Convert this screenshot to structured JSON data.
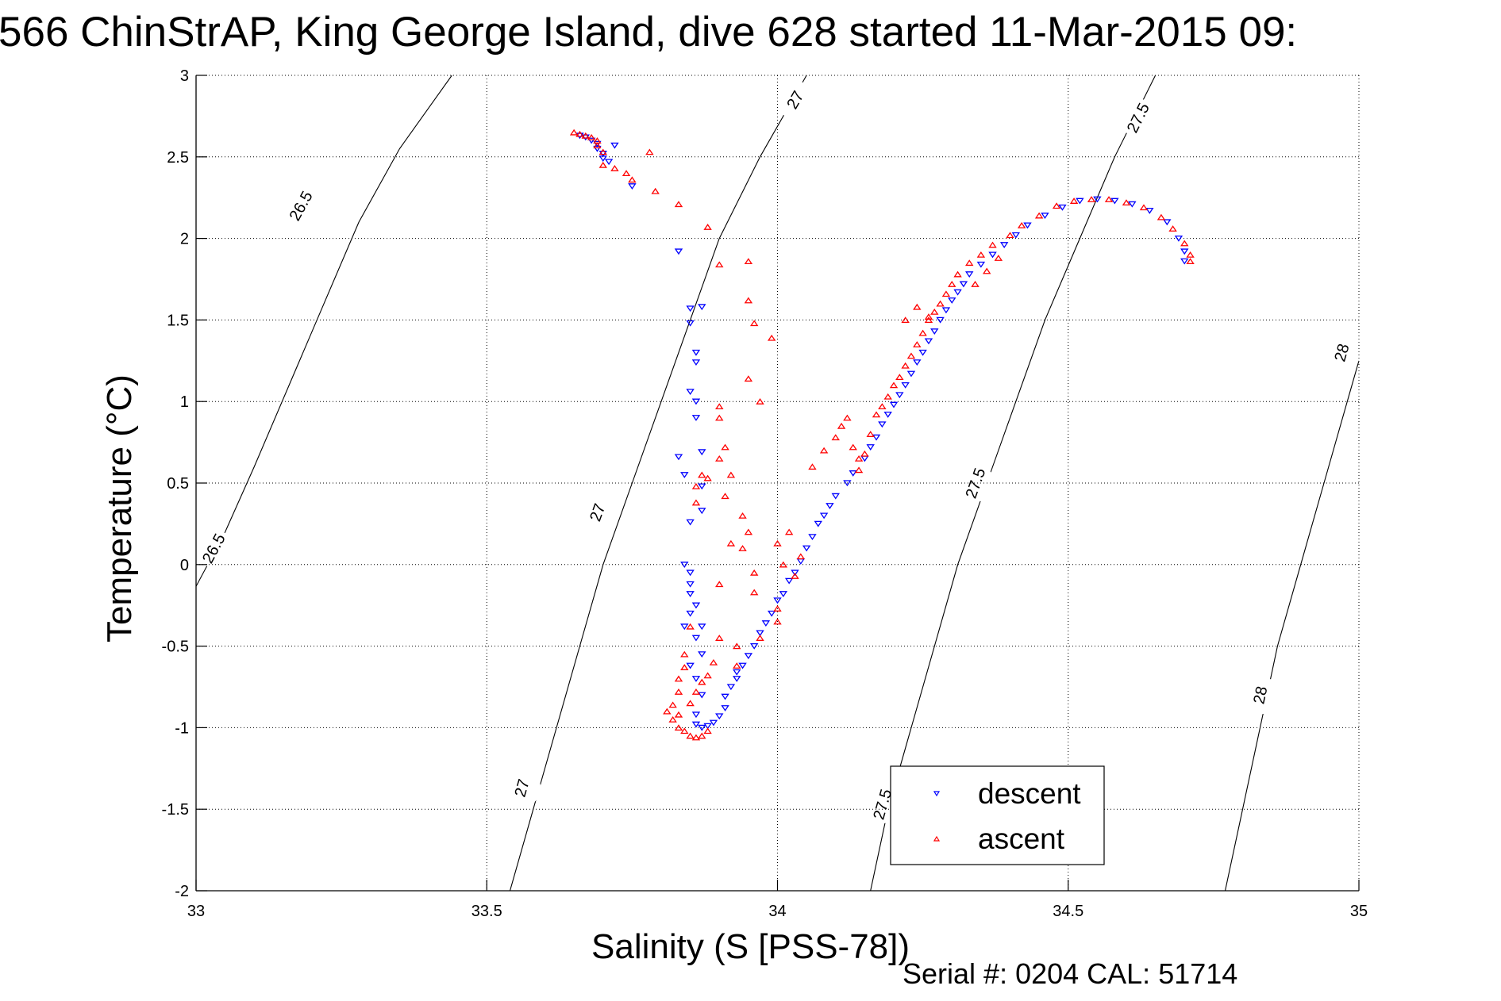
{
  "chart_data": {
    "type": "scatter",
    "title": "566 ChinStrAP, King George Island, dive 628 started 11-Mar-2015 09:",
    "xlabel": "Salinity (S [PSS-78])",
    "ylabel": "Temperature (°C)",
    "xlim": [
      33,
      35
    ],
    "ylim": [
      -2,
      3
    ],
    "xticks": [
      33,
      33.5,
      34,
      34.5,
      35
    ],
    "xtick_labels": [
      "33",
      "33.5",
      "34",
      "34.5",
      "35"
    ],
    "yticks": [
      -2,
      -1.5,
      -1,
      -0.5,
      0,
      0.5,
      1,
      1.5,
      2,
      2.5,
      3
    ],
    "ytick_labels": [
      "-2",
      "-1.5",
      "-1",
      "-0.5",
      "0",
      "0.5",
      "1",
      "1.5",
      "2",
      "2.5",
      "3"
    ],
    "grid": true,
    "legend_position": "bottom-right",
    "footer": "Serial #: 0204  CAL: 51714",
    "isopycnals": [
      {
        "sigma": 26.5,
        "label": "26.5",
        "points": [
          [
            32.99,
            -0.2
          ],
          [
            33.05,
            0.2
          ],
          [
            33.1,
            0.6
          ],
          [
            33.16,
            1.1
          ],
          [
            33.22,
            1.6
          ],
          [
            33.28,
            2.1
          ],
          [
            33.35,
            2.55
          ],
          [
            33.44,
            3.0
          ]
        ],
        "label_at": [
          [
            33.18,
            2.2
          ],
          [
            33.03,
            0.1
          ]
        ]
      },
      {
        "sigma": 27.0,
        "label": "27",
        "points": [
          [
            33.54,
            -2.0
          ],
          [
            33.58,
            -1.5
          ],
          [
            33.62,
            -1.0
          ],
          [
            33.66,
            -0.5
          ],
          [
            33.7,
            0.0
          ],
          [
            33.75,
            0.5
          ],
          [
            33.8,
            1.0
          ],
          [
            33.85,
            1.5
          ],
          [
            33.9,
            2.0
          ],
          [
            33.97,
            2.5
          ],
          [
            34.05,
            3.0
          ]
        ],
        "label_at": [
          [
            33.56,
            -1.37
          ],
          [
            33.69,
            0.32
          ],
          [
            34.03,
            2.85
          ]
        ]
      },
      {
        "sigma": 27.5,
        "label": "27.5",
        "points": [
          [
            34.16,
            -2.0
          ],
          [
            34.19,
            -1.5
          ],
          [
            34.23,
            -1.0
          ],
          [
            34.27,
            -0.5
          ],
          [
            34.31,
            0.0
          ],
          [
            34.36,
            0.5
          ],
          [
            34.41,
            1.0
          ],
          [
            34.46,
            1.5
          ],
          [
            34.52,
            2.0
          ],
          [
            34.58,
            2.5
          ],
          [
            34.65,
            3.0
          ]
        ],
        "label_at": [
          [
            34.18,
            -1.47
          ],
          [
            34.34,
            0.5
          ],
          [
            34.62,
            2.74
          ]
        ]
      },
      {
        "sigma": 28.0,
        "label": "28",
        "points": [
          [
            34.77,
            -2.0
          ],
          [
            34.8,
            -1.5
          ],
          [
            34.83,
            -1.0
          ],
          [
            34.86,
            -0.5
          ],
          [
            34.9,
            0.0
          ],
          [
            34.94,
            0.5
          ],
          [
            34.98,
            1.0
          ],
          [
            35.0,
            1.25
          ]
        ],
        "label_at": [
          [
            34.83,
            -0.8
          ],
          [
            34.97,
            1.3
          ]
        ]
      }
    ],
    "series": [
      {
        "name": "descent",
        "color": "#0000ff",
        "marker": "triangle-down",
        "points": [
          [
            33.66,
            2.63
          ],
          [
            33.67,
            2.62
          ],
          [
            33.68,
            2.6
          ],
          [
            33.69,
            2.58
          ],
          [
            33.69,
            2.55
          ],
          [
            33.7,
            2.52
          ],
          [
            33.7,
            2.49
          ],
          [
            33.72,
            2.57
          ],
          [
            33.71,
            2.47
          ],
          [
            33.75,
            2.32
          ],
          [
            33.83,
            1.92
          ],
          [
            33.85,
            1.57
          ],
          [
            33.87,
            1.58
          ],
          [
            33.85,
            1.48
          ],
          [
            33.86,
            1.3
          ],
          [
            33.86,
            1.24
          ],
          [
            33.85,
            1.06
          ],
          [
            33.86,
            1.0
          ],
          [
            33.86,
            0.9
          ],
          [
            33.83,
            0.66
          ],
          [
            33.87,
            0.69
          ],
          [
            33.84,
            0.55
          ],
          [
            33.87,
            0.48
          ],
          [
            33.87,
            0.33
          ],
          [
            33.85,
            0.26
          ],
          [
            33.84,
            0.0
          ],
          [
            33.85,
            -0.05
          ],
          [
            33.85,
            -0.12
          ],
          [
            33.85,
            -0.18
          ],
          [
            33.86,
            -0.25
          ],
          [
            33.85,
            -0.3
          ],
          [
            33.84,
            -0.38
          ],
          [
            33.87,
            -0.38
          ],
          [
            33.86,
            -0.45
          ],
          [
            33.87,
            -0.55
          ],
          [
            33.85,
            -0.62
          ],
          [
            33.86,
            -0.7
          ],
          [
            33.87,
            -0.8
          ],
          [
            33.86,
            -0.92
          ],
          [
            33.86,
            -0.98
          ],
          [
            33.87,
            -1.0
          ],
          [
            33.88,
            -0.99
          ],
          [
            33.89,
            -0.97
          ],
          [
            33.9,
            -0.93
          ],
          [
            33.91,
            -0.88
          ],
          [
            33.91,
            -0.81
          ],
          [
            33.92,
            -0.75
          ],
          [
            33.93,
            -0.7
          ],
          [
            33.93,
            -0.66
          ],
          [
            33.94,
            -0.62
          ],
          [
            33.95,
            -0.56
          ],
          [
            33.96,
            -0.5
          ],
          [
            33.97,
            -0.42
          ],
          [
            33.98,
            -0.36
          ],
          [
            33.99,
            -0.3
          ],
          [
            34.0,
            -0.22
          ],
          [
            34.01,
            -0.18
          ],
          [
            34.02,
            -0.1
          ],
          [
            34.03,
            -0.05
          ],
          [
            34.04,
            0.02
          ],
          [
            34.05,
            0.1
          ],
          [
            34.06,
            0.17
          ],
          [
            34.07,
            0.25
          ],
          [
            34.08,
            0.3
          ],
          [
            34.09,
            0.36
          ],
          [
            34.1,
            0.42
          ],
          [
            34.12,
            0.5
          ],
          [
            34.13,
            0.56
          ],
          [
            34.15,
            0.65
          ],
          [
            34.16,
            0.72
          ],
          [
            34.17,
            0.78
          ],
          [
            34.18,
            0.86
          ],
          [
            34.19,
            0.92
          ],
          [
            34.2,
            0.98
          ],
          [
            34.21,
            1.04
          ],
          [
            34.22,
            1.1
          ],
          [
            34.23,
            1.17
          ],
          [
            34.24,
            1.24
          ],
          [
            34.25,
            1.3
          ],
          [
            34.26,
            1.37
          ],
          [
            34.27,
            1.43
          ],
          [
            34.28,
            1.5
          ],
          [
            34.29,
            1.56
          ],
          [
            34.3,
            1.62
          ],
          [
            34.31,
            1.67
          ],
          [
            34.32,
            1.72
          ],
          [
            34.33,
            1.78
          ],
          [
            34.35,
            1.84
          ],
          [
            34.37,
            1.9
          ],
          [
            34.39,
            1.96
          ],
          [
            34.41,
            2.02
          ],
          [
            34.43,
            2.08
          ],
          [
            34.46,
            2.14
          ],
          [
            34.49,
            2.19
          ],
          [
            34.52,
            2.23
          ],
          [
            34.55,
            2.24
          ],
          [
            34.58,
            2.23
          ],
          [
            34.61,
            2.21
          ],
          [
            34.64,
            2.17
          ],
          [
            34.67,
            2.1
          ],
          [
            34.69,
            2.0
          ],
          [
            34.7,
            1.92
          ],
          [
            34.7,
            1.86
          ]
        ]
      },
      {
        "name": "ascent",
        "color": "#ff0000",
        "marker": "triangle-up",
        "points": [
          [
            33.65,
            2.65
          ],
          [
            33.66,
            2.64
          ],
          [
            33.67,
            2.63
          ],
          [
            33.68,
            2.62
          ],
          [
            33.69,
            2.6
          ],
          [
            33.69,
            2.57
          ],
          [
            33.7,
            2.53
          ],
          [
            33.7,
            2.45
          ],
          [
            33.72,
            2.43
          ],
          [
            33.74,
            2.4
          ],
          [
            33.78,
            2.53
          ],
          [
            33.75,
            2.36
          ],
          [
            33.79,
            2.29
          ],
          [
            33.83,
            2.21
          ],
          [
            33.88,
            2.07
          ],
          [
            33.9,
            1.84
          ],
          [
            33.95,
            1.86
          ],
          [
            33.95,
            1.62
          ],
          [
            33.99,
            1.39
          ],
          [
            33.96,
            1.48
          ],
          [
            33.95,
            1.14
          ],
          [
            33.97,
            1.0
          ],
          [
            33.9,
            0.97
          ],
          [
            33.9,
            0.9
          ],
          [
            33.91,
            0.72
          ],
          [
            33.9,
            0.65
          ],
          [
            33.87,
            0.55
          ],
          [
            33.88,
            0.53
          ],
          [
            33.86,
            0.48
          ],
          [
            33.86,
            0.38
          ],
          [
            33.92,
            0.55
          ],
          [
            33.91,
            0.42
          ],
          [
            33.94,
            0.3
          ],
          [
            33.95,
            0.2
          ],
          [
            33.92,
            0.13
          ],
          [
            34.0,
            0.13
          ],
          [
            34.01,
            0.0
          ],
          [
            34.04,
            0.05
          ],
          [
            34.03,
            -0.07
          ],
          [
            34.02,
            0.2
          ],
          [
            33.94,
            0.1
          ],
          [
            33.96,
            -0.05
          ],
          [
            33.9,
            -0.12
          ],
          [
            33.96,
            -0.17
          ],
          [
            34.0,
            -0.27
          ],
          [
            34.0,
            -0.35
          ],
          [
            33.97,
            -0.45
          ],
          [
            33.93,
            -0.5
          ],
          [
            33.9,
            -0.45
          ],
          [
            33.85,
            -0.38
          ],
          [
            33.84,
            -0.55
          ],
          [
            33.84,
            -0.63
          ],
          [
            33.83,
            -0.7
          ],
          [
            33.83,
            -0.78
          ],
          [
            33.82,
            -0.86
          ],
          [
            33.81,
            -0.9
          ],
          [
            33.82,
            -0.95
          ],
          [
            33.83,
            -0.92
          ],
          [
            33.83,
            -1.0
          ],
          [
            33.84,
            -1.02
          ],
          [
            33.85,
            -1.05
          ],
          [
            33.86,
            -1.06
          ],
          [
            33.87,
            -1.05
          ],
          [
            33.88,
            -1.02
          ],
          [
            33.85,
            -0.85
          ],
          [
            33.86,
            -0.78
          ],
          [
            33.87,
            -0.72
          ],
          [
            33.88,
            -0.68
          ],
          [
            33.89,
            -0.6
          ],
          [
            33.93,
            -0.62
          ],
          [
            34.06,
            0.6
          ],
          [
            34.08,
            0.7
          ],
          [
            34.1,
            0.78
          ],
          [
            34.11,
            0.85
          ],
          [
            34.12,
            0.9
          ],
          [
            34.13,
            0.72
          ],
          [
            34.14,
            0.65
          ],
          [
            34.14,
            0.58
          ],
          [
            34.15,
            0.68
          ],
          [
            34.16,
            0.8
          ],
          [
            34.17,
            0.92
          ],
          [
            34.18,
            0.97
          ],
          [
            34.19,
            1.03
          ],
          [
            34.2,
            1.1
          ],
          [
            34.21,
            1.15
          ],
          [
            34.22,
            1.22
          ],
          [
            34.23,
            1.28
          ],
          [
            34.24,
            1.35
          ],
          [
            34.25,
            1.42
          ],
          [
            34.26,
            1.5
          ],
          [
            34.27,
            1.55
          ],
          [
            34.28,
            1.6
          ],
          [
            34.29,
            1.66
          ],
          [
            34.3,
            1.72
          ],
          [
            34.31,
            1.78
          ],
          [
            34.33,
            1.85
          ],
          [
            34.35,
            1.9
          ],
          [
            34.37,
            1.96
          ],
          [
            34.4,
            2.02
          ],
          [
            34.42,
            2.08
          ],
          [
            34.45,
            2.14
          ],
          [
            34.48,
            2.2
          ],
          [
            34.51,
            2.23
          ],
          [
            34.54,
            2.24
          ],
          [
            34.57,
            2.24
          ],
          [
            34.6,
            2.22
          ],
          [
            34.63,
            2.19
          ],
          [
            34.66,
            2.13
          ],
          [
            34.68,
            2.06
          ],
          [
            34.7,
            1.97
          ],
          [
            34.71,
            1.9
          ],
          [
            34.71,
            1.86
          ],
          [
            34.34,
            1.72
          ],
          [
            34.36,
            1.8
          ],
          [
            34.38,
            1.88
          ],
          [
            34.22,
            1.5
          ],
          [
            34.24,
            1.58
          ],
          [
            34.26,
            1.52
          ]
        ]
      }
    ]
  }
}
